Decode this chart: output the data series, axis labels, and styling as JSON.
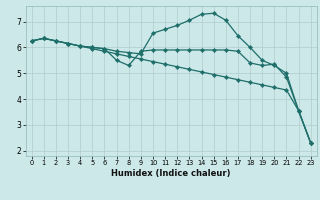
{
  "xlabel": "Humidex (Indice chaleur)",
  "bg_color": "#cce8e8",
  "grid_color": "#b0cccc",
  "line_color": "#1e6e6a",
  "xlim": [
    -0.5,
    23.5
  ],
  "ylim": [
    1.8,
    7.6
  ],
  "xticks": [
    0,
    1,
    2,
    3,
    4,
    5,
    6,
    7,
    8,
    9,
    10,
    11,
    12,
    13,
    14,
    15,
    16,
    17,
    18,
    19,
    20,
    21,
    22,
    23
  ],
  "yticks": [
    2,
    3,
    4,
    5,
    6,
    7
  ],
  "line1_x": [
    0,
    1,
    2,
    3,
    4,
    5,
    6,
    7,
    8,
    9,
    10,
    11,
    12,
    13,
    14,
    15,
    16,
    17,
    18,
    19,
    20,
    21,
    22,
    23
  ],
  "line1_y": [
    6.25,
    6.35,
    6.25,
    6.15,
    6.05,
    5.95,
    5.85,
    5.75,
    5.65,
    5.55,
    5.45,
    5.35,
    5.25,
    5.15,
    5.05,
    4.95,
    4.85,
    4.75,
    4.65,
    4.55,
    4.45,
    4.35,
    3.55,
    2.3
  ],
  "line1_markers": [
    0,
    1,
    2,
    3,
    4,
    5,
    6,
    7,
    8,
    9,
    10,
    11,
    12,
    13,
    14,
    15,
    16,
    17,
    18,
    19,
    20,
    21,
    22,
    23
  ],
  "line2_x": [
    0,
    1,
    2,
    3,
    4,
    5,
    6,
    7,
    8,
    9,
    10,
    11,
    12,
    13,
    14,
    15,
    16,
    17,
    18,
    19,
    20,
    21,
    22,
    23
  ],
  "line2_y": [
    6.25,
    6.35,
    6.25,
    6.15,
    6.05,
    6.0,
    5.95,
    5.85,
    5.8,
    5.75,
    6.55,
    6.7,
    6.85,
    7.05,
    7.28,
    7.32,
    7.05,
    6.45,
    6.0,
    5.5,
    5.3,
    5.0,
    3.55,
    2.3
  ],
  "line2_markers": [
    0,
    1,
    2,
    3,
    4,
    10,
    11,
    12,
    13,
    14,
    15,
    16,
    17,
    18,
    19,
    20,
    21,
    22,
    23
  ],
  "line3_x": [
    0,
    1,
    2,
    3,
    4,
    5,
    6,
    7,
    8,
    9,
    10,
    11,
    12,
    13,
    14,
    15,
    16,
    17,
    18,
    19,
    20,
    21,
    22,
    23
  ],
  "line3_y": [
    6.25,
    6.35,
    6.25,
    6.15,
    6.05,
    6.0,
    5.95,
    5.5,
    5.3,
    5.85,
    5.9,
    5.9,
    5.9,
    5.9,
    5.9,
    5.9,
    5.9,
    5.85,
    5.4,
    5.3,
    5.35,
    4.85,
    3.55,
    2.3
  ],
  "line3_markers": [
    0,
    1,
    2,
    3,
    4,
    5,
    6,
    7,
    8,
    9,
    16,
    17,
    18,
    19,
    20,
    21,
    22,
    23
  ]
}
